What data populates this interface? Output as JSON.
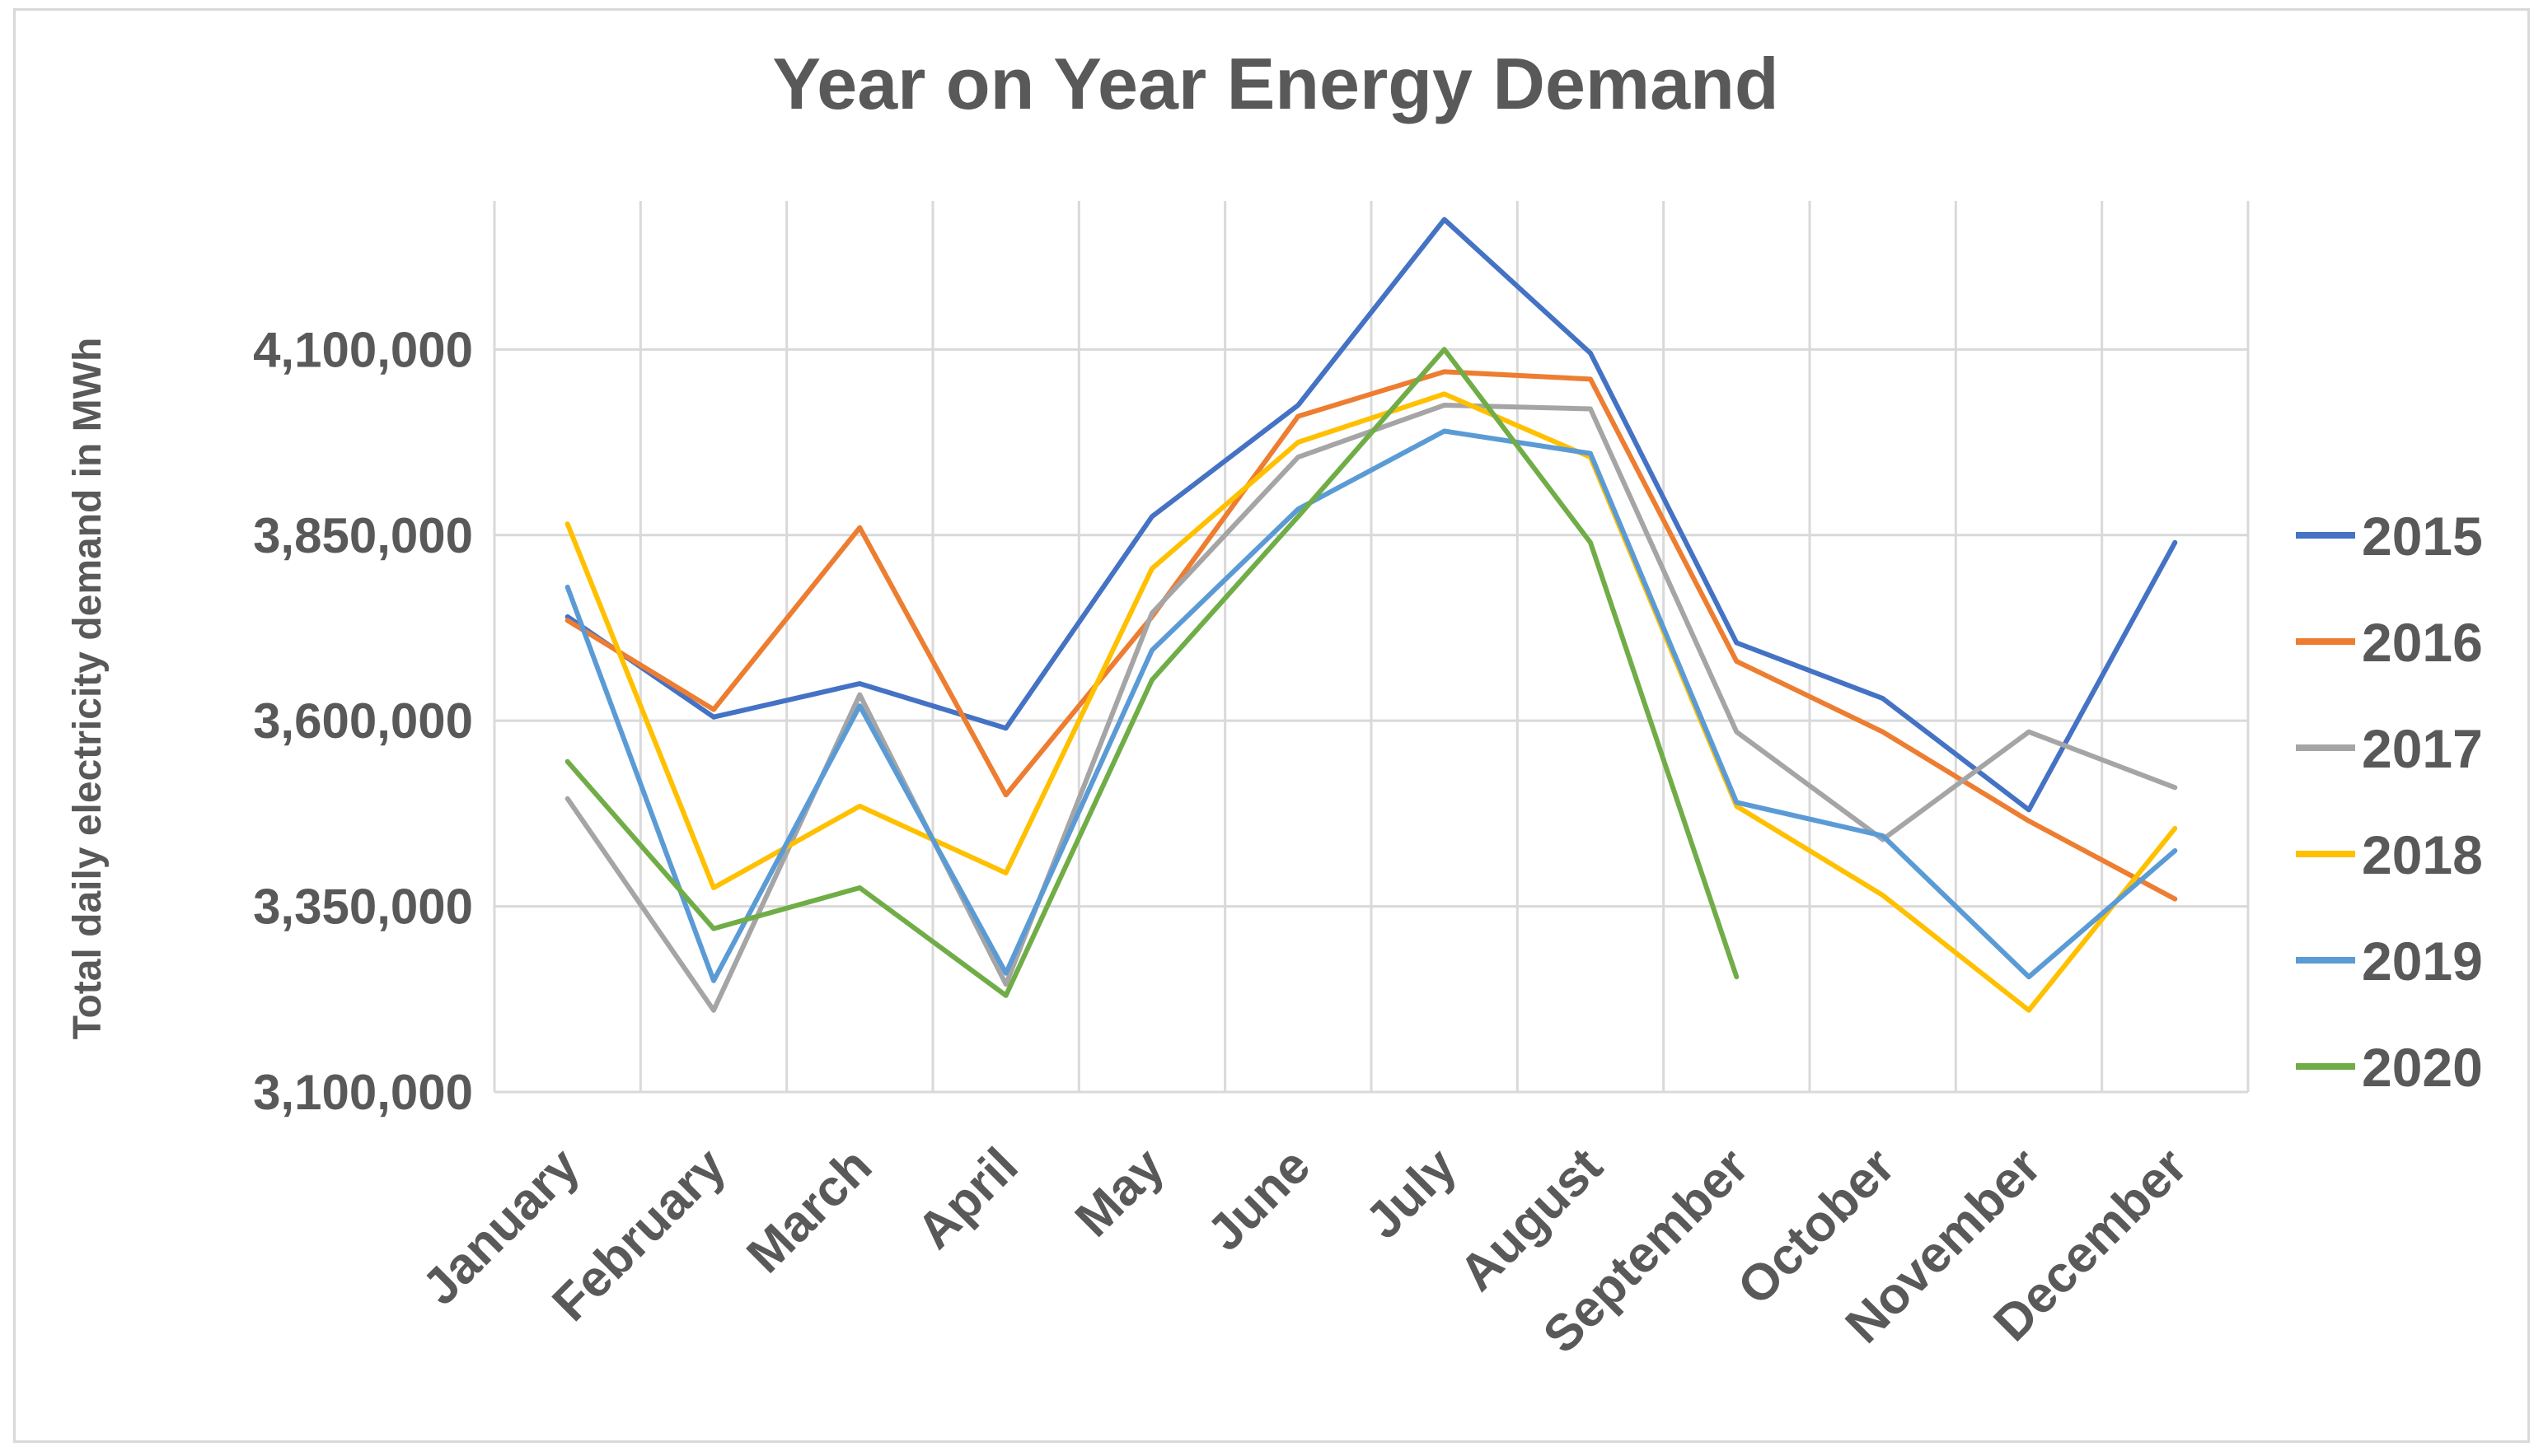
{
  "chart_data": {
    "type": "line",
    "title": "Year on Year Energy Demand",
    "xlabel": "",
    "ylabel": "Total daily electricity demand in MWh",
    "categories": [
      "January",
      "February",
      "March",
      "April",
      "May",
      "June",
      "July",
      "August",
      "September",
      "October",
      "November",
      "December"
    ],
    "ylim": [
      3100000,
      4300000
    ],
    "yticks": [
      3100000,
      3350000,
      3600000,
      3850000,
      4100000
    ],
    "ytick_labels": [
      "3,100,000",
      "3,350,000",
      "3,600,000",
      "3,850,000",
      "4,100,000"
    ],
    "grid": true,
    "legend_position": "right",
    "series": [
      {
        "name": "2015",
        "color": "#4472c4",
        "values": [
          3740000,
          3605000,
          3650000,
          3590000,
          3875000,
          4025000,
          4275000,
          4095000,
          3705000,
          3630000,
          3480000,
          3840000
        ]
      },
      {
        "name": "2016",
        "color": "#ed7d31",
        "values": [
          3735000,
          3615000,
          3860000,
          3500000,
          3740000,
          4010000,
          4070000,
          4060000,
          3680000,
          3585000,
          3465000,
          3360000
        ]
      },
      {
        "name": "2017",
        "color": "#a5a5a5",
        "values": [
          3495000,
          3210000,
          3635000,
          3245000,
          3745000,
          3955000,
          4025000,
          4020000,
          3585000,
          3440000,
          3585000,
          3510000
        ]
      },
      {
        "name": "2018",
        "color": "#ffc000",
        "values": [
          3865000,
          3375000,
          3485000,
          3395000,
          3805000,
          3975000,
          4040000,
          3955000,
          3485000,
          3365000,
          3210000,
          3455000
        ]
      },
      {
        "name": "2019",
        "color": "#5b9bd5",
        "values": [
          3780000,
          3250000,
          3620000,
          3260000,
          3695000,
          3885000,
          3990000,
          3960000,
          3490000,
          3445000,
          3255000,
          3425000
        ]
      },
      {
        "name": "2020",
        "color": "#70ad47",
        "values": [
          3545000,
          3320000,
          3375000,
          3230000,
          3655000,
          3875000,
          4100000,
          3840000,
          3255000,
          null,
          null,
          null
        ]
      }
    ]
  }
}
